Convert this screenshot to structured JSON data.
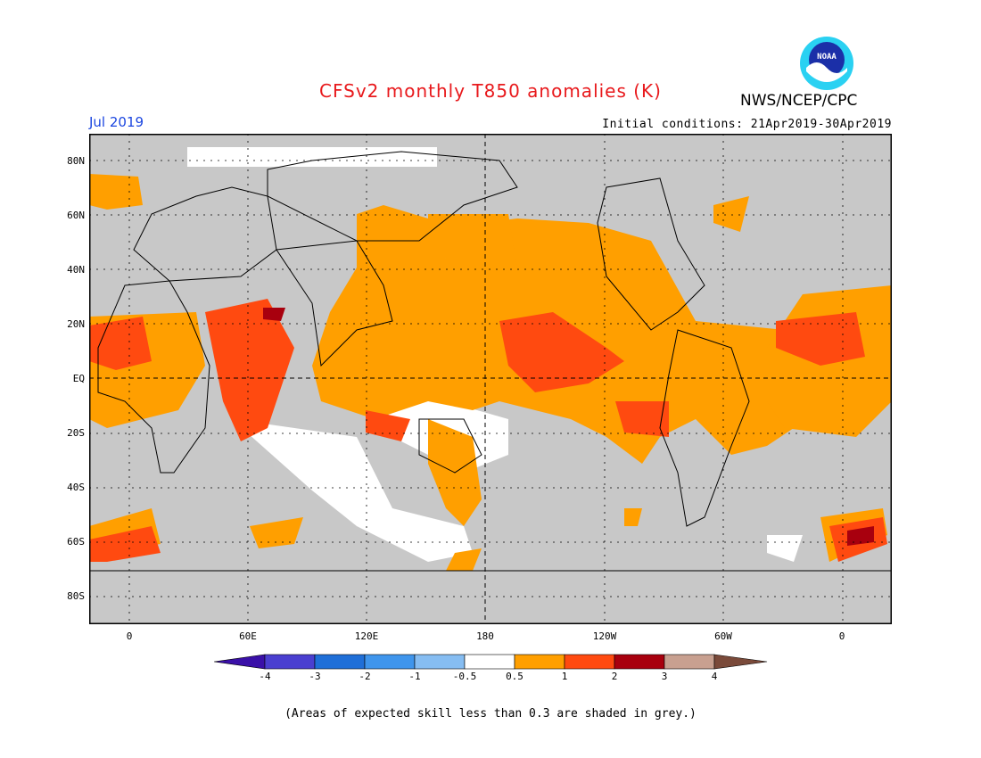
{
  "header": {
    "title": "CFSv2 monthly T850 anomalies (K)",
    "agency": "NWS/NCEP/CPC",
    "logo_text": "NOAA",
    "valid_month": "Jul 2019",
    "initial_conditions": "Initial conditions: 21Apr2019-30Apr2019"
  },
  "map": {
    "lat_labels": [
      "80N",
      "60N",
      "40N",
      "20N",
      "EQ",
      "20S",
      "40S",
      "60S",
      "80S"
    ],
    "lon_labels": [
      "0",
      "60E",
      "120E",
      "180",
      "120W",
      "60W",
      "0"
    ],
    "skill_mask_color": "#c8c8c8",
    "regions": [
      {
        "name": "central-pacific-warm",
        "level": "1 to 2"
      },
      {
        "name": "tropical-pacific-band",
        "level": "0.5 to 1"
      },
      {
        "name": "arabian-sea-warm",
        "level": "1 to 2"
      },
      {
        "name": "sahara-warm",
        "level": "1 to 2"
      },
      {
        "name": "north-pacific-warm",
        "level": "0.5 to 1"
      },
      {
        "name": "southern-ocean-warm",
        "level": "1 to 2"
      }
    ]
  },
  "colorbar": {
    "labels": [
      "-4",
      "-3",
      "-2",
      "-1",
      "-0.5",
      "0.5",
      "1",
      "2",
      "3",
      "4"
    ],
    "colors": [
      "#3a10a8",
      "#4a3fd0",
      "#1f6fd8",
      "#3f95ec",
      "#86bdf2",
      "#ffffff",
      "#ff9f00",
      "#ff4a10",
      "#a8000e",
      "#c8a090",
      "#7a4a3a"
    ]
  },
  "footer": {
    "note": "(Areas of expected skill less than 0.3 are shaded in grey.)"
  }
}
